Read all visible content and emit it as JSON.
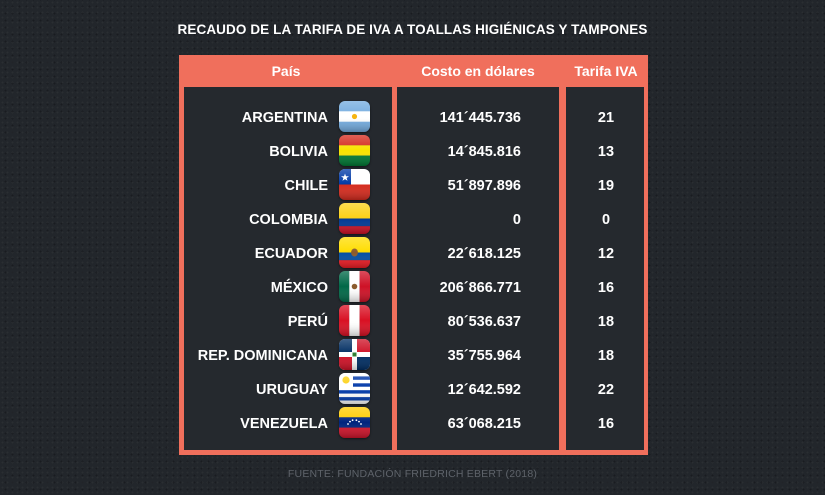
{
  "title": "RECAUDO DE LA TARIFA DE IVA A TOALLAS HIGIÉNICAS Y TAMPONES",
  "source": "FUENTE: FUNDACIÓN FRIEDRICH EBERT (2018)",
  "colors": {
    "frame": "#f06f5c",
    "panel": "#25292e",
    "background": "#22262b"
  },
  "chart_data": {
    "type": "table",
    "title": "RECAUDO DE LA TARIFA DE IVA A TOALLAS HIGIÉNICAS Y TAMPONES",
    "columns": [
      "País",
      "Costo en dólares",
      "Tarifa IVA"
    ],
    "rows": [
      {
        "country": "ARGENTINA",
        "cost": "141´445.736",
        "rate": "21",
        "flag": "argentina-flag-icon"
      },
      {
        "country": "BOLIVIA",
        "cost": "14´845.816",
        "rate": "13",
        "flag": "bolivia-flag-icon"
      },
      {
        "country": "CHILE",
        "cost": "51´897.896",
        "rate": "19",
        "flag": "chile-flag-icon"
      },
      {
        "country": "COLOMBIA",
        "cost": "0",
        "rate": "0",
        "flag": "colombia-flag-icon"
      },
      {
        "country": "ECUADOR",
        "cost": "22´618.125",
        "rate": "12",
        "flag": "ecuador-flag-icon"
      },
      {
        "country": "MÉXICO",
        "cost": "206´866.771",
        "rate": "16",
        "flag": "mexico-flag-icon"
      },
      {
        "country": "PERÚ",
        "cost": "80´536.637",
        "rate": "18",
        "flag": "peru-flag-icon"
      },
      {
        "country": "REP. DOMINICANA",
        "cost": "35´755.964",
        "rate": "18",
        "flag": "dominican-republic-flag-icon"
      },
      {
        "country": "URUGUAY",
        "cost": "12´642.592",
        "rate": "22",
        "flag": "uruguay-flag-icon"
      },
      {
        "country": "VENEZUELA",
        "cost": "63´068.215",
        "rate": "16",
        "flag": "venezuela-flag-icon"
      }
    ]
  }
}
